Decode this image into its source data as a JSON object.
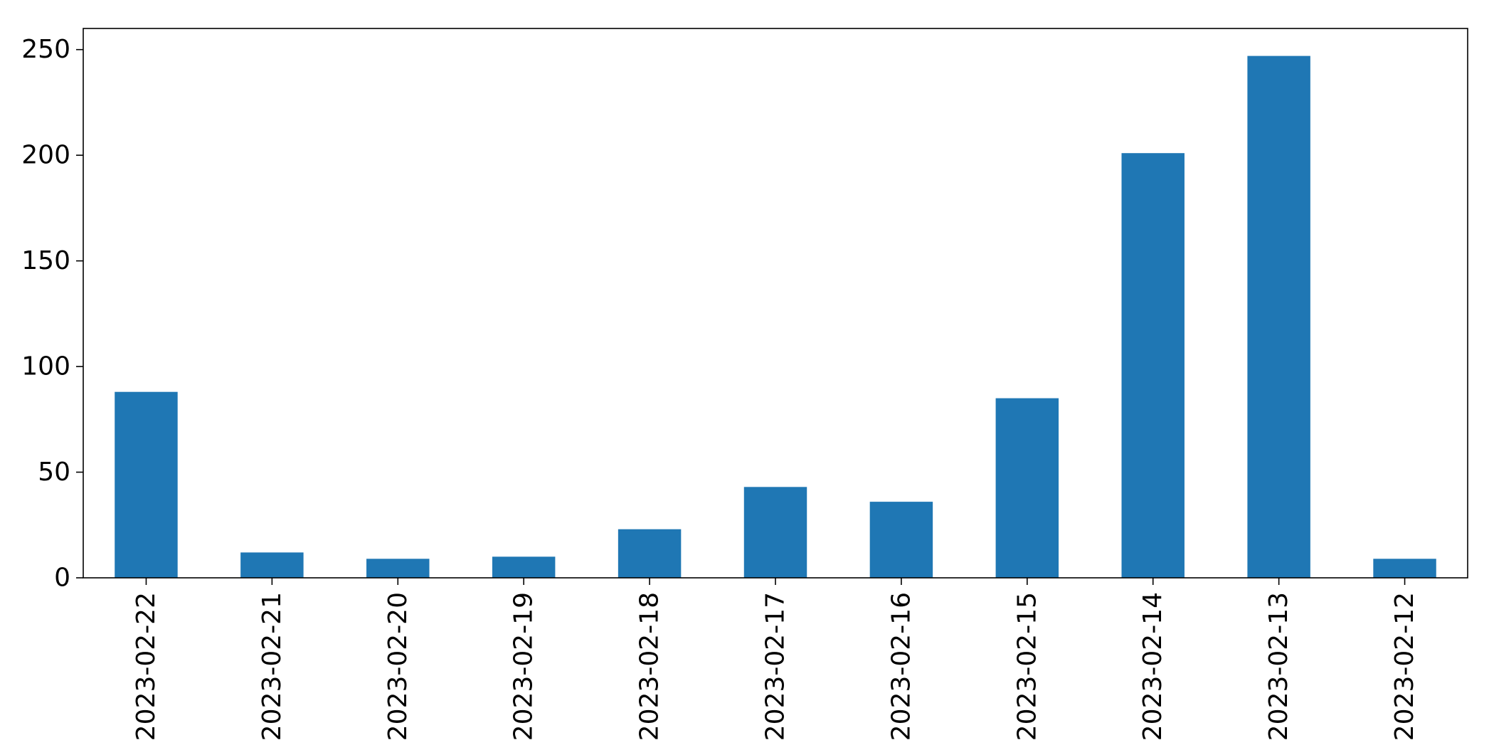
{
  "chart_data": {
    "type": "bar",
    "title": "",
    "xlabel": "",
    "ylabel": "",
    "categories": [
      "2023-02-22",
      "2023-02-21",
      "2023-02-20",
      "2023-02-19",
      "2023-02-18",
      "2023-02-17",
      "2023-02-16",
      "2023-02-15",
      "2023-02-14",
      "2023-02-13",
      "2023-02-12"
    ],
    "values": [
      88,
      12,
      9,
      10,
      23,
      43,
      36,
      85,
      201,
      247,
      9
    ],
    "ylim": [
      0,
      260
    ],
    "yticks": [
      0,
      50,
      100,
      150,
      200,
      250
    ],
    "ytick_labels": [
      "0",
      "50",
      "100",
      "150",
      "200",
      "250"
    ],
    "bar_color": "#1f77b4",
    "grid": false,
    "legend": false
  }
}
